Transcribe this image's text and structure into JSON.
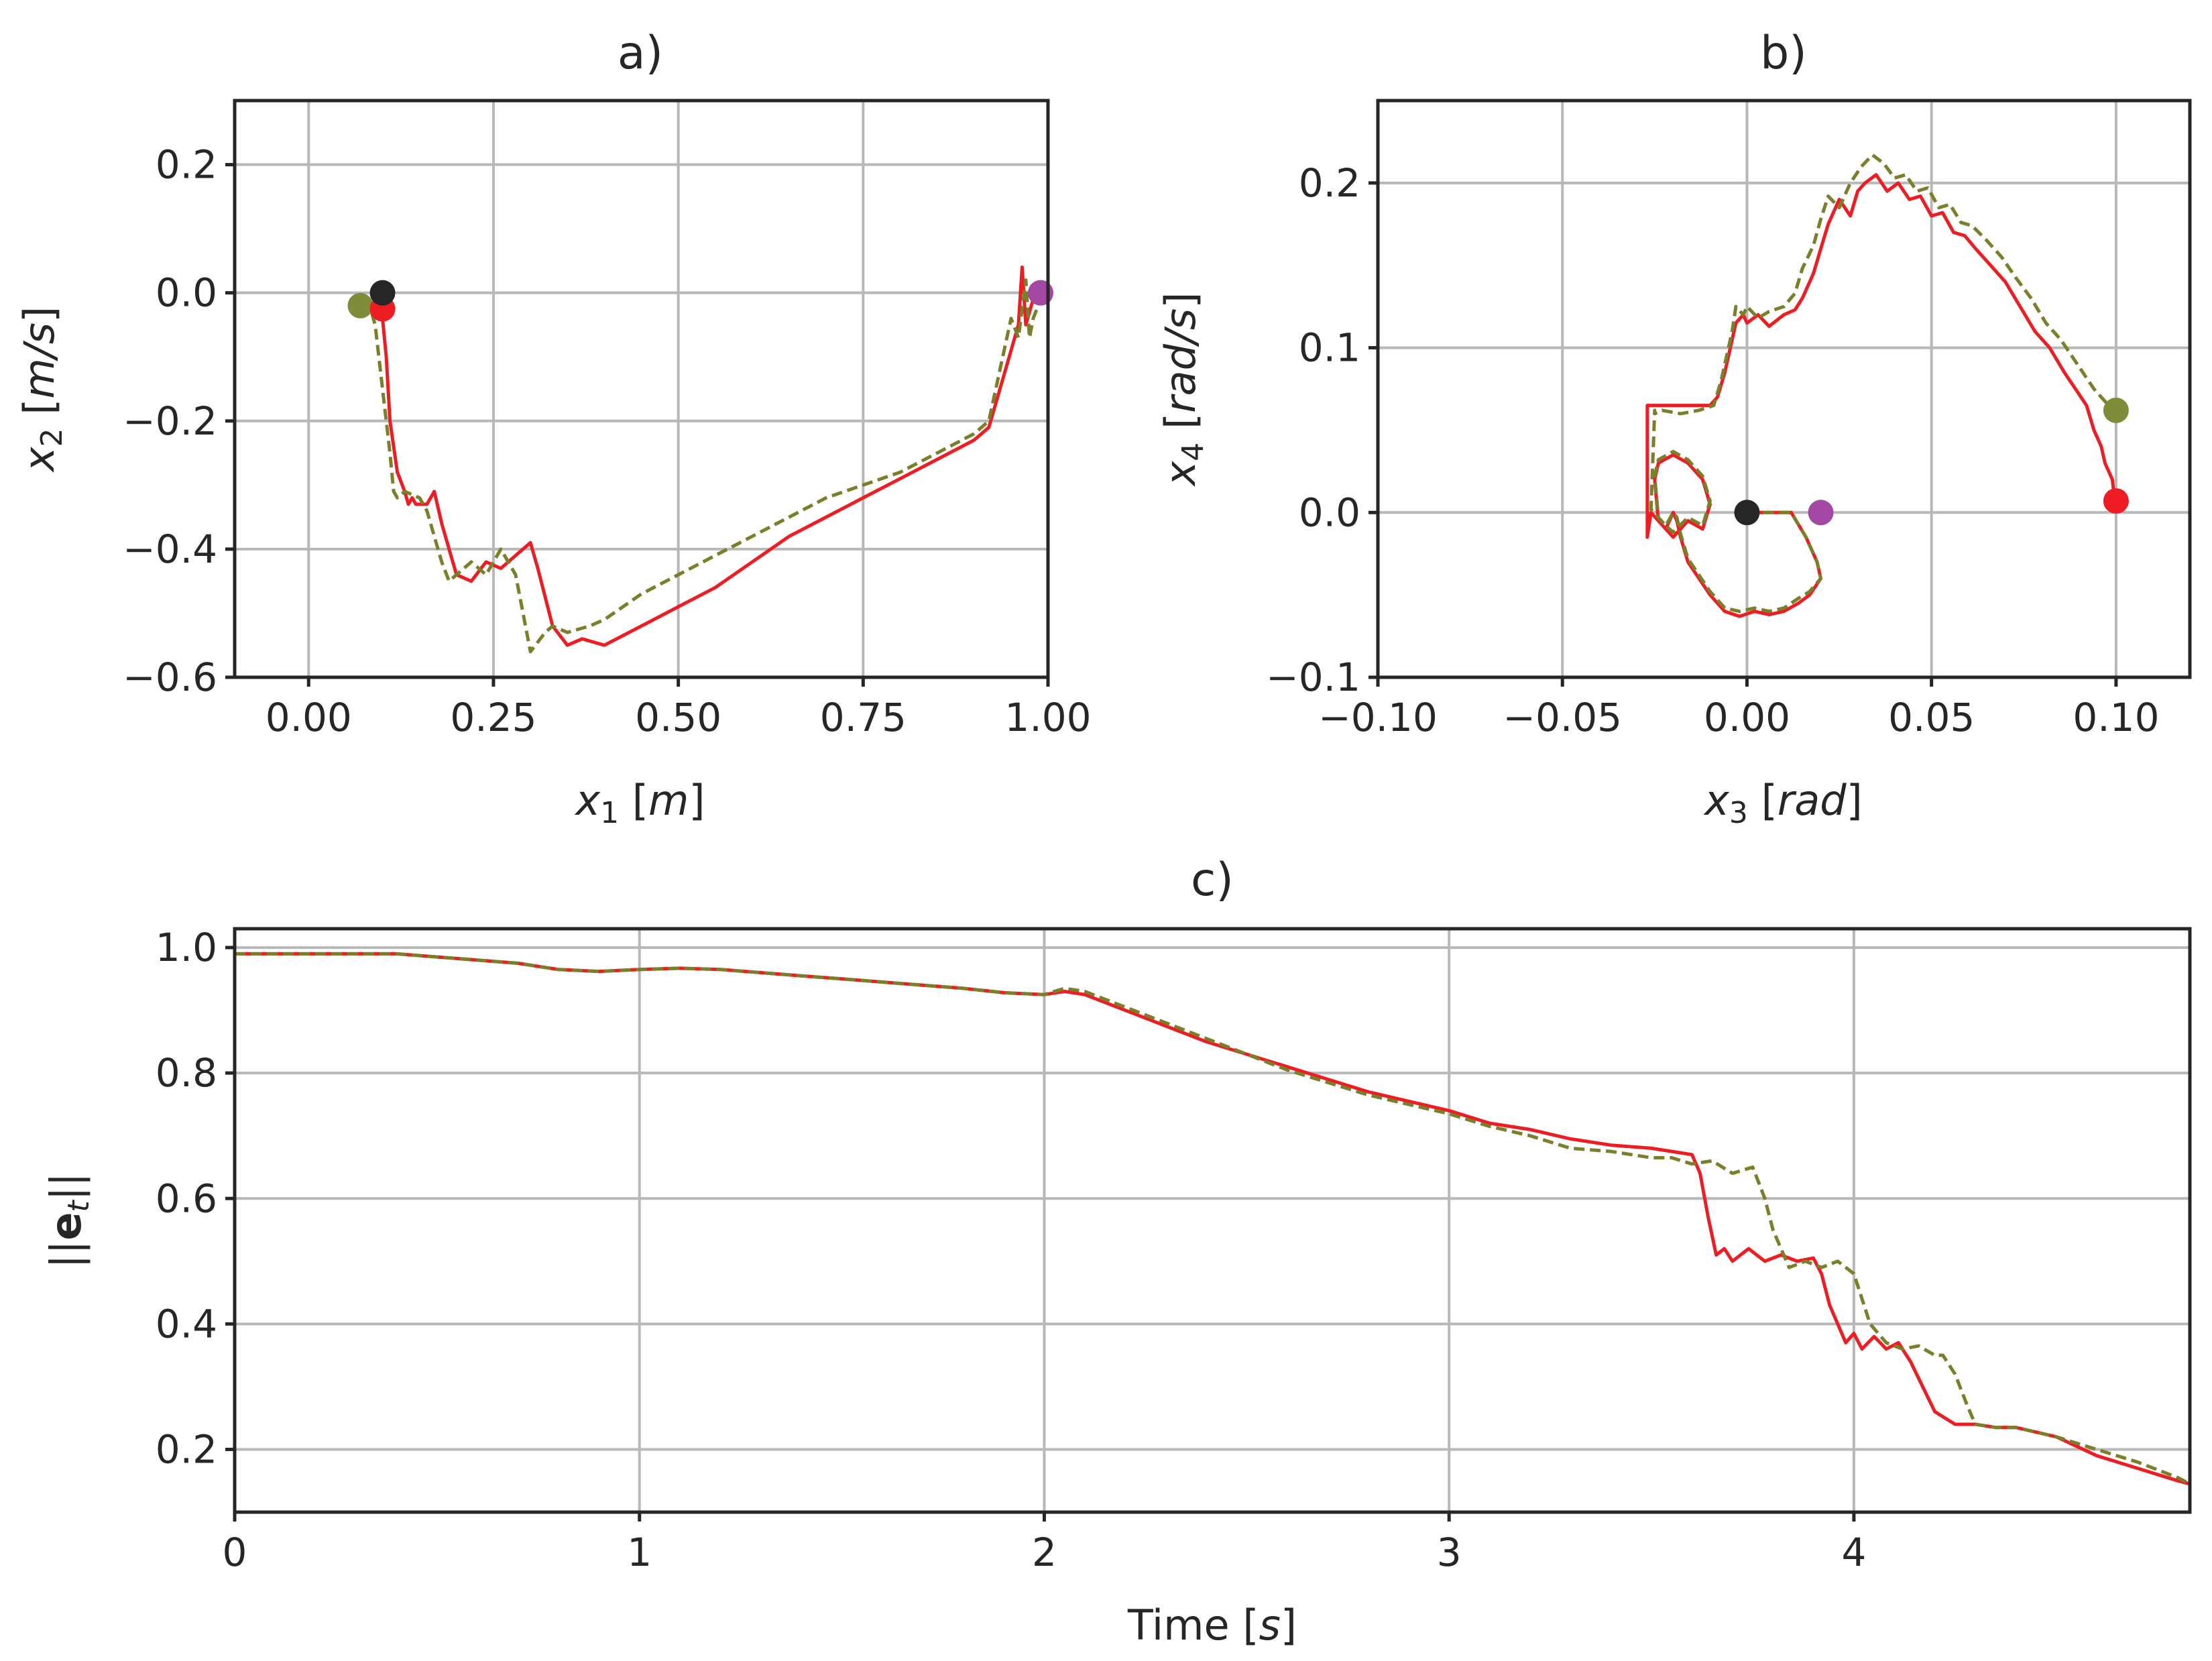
{
  "colors": {
    "red": "#ee1c23",
    "olive": "#7b7f2a",
    "olive_marker": "#7f8c3a",
    "black_marker": "#262626",
    "purple_marker": "#a349a4",
    "red_marker": "#ee1c23"
  },
  "chart_data": [
    {
      "id": "a",
      "type": "line",
      "title": "a)",
      "xlabel": {
        "var": "x",
        "sub": "1",
        "unit": "m"
      },
      "ylabel": {
        "var": "x",
        "sub": "2",
        "unit": "m/s"
      },
      "xlim": [
        -0.1,
        1.0
      ],
      "ylim": [
        -0.6,
        0.3
      ],
      "grid": true,
      "xticks": [
        0.0,
        0.25,
        0.5,
        0.75,
        1.0
      ],
      "xtick_labels": [
        "0.00",
        "0.25",
        "0.50",
        "0.75",
        "1.00"
      ],
      "yticks": [
        -0.6,
        -0.4,
        -0.2,
        0.0,
        0.2
      ],
      "ytick_labels": [
        "−0.6",
        "−0.4",
        "−0.2",
        "0.0",
        "0.2"
      ],
      "series": [
        {
          "name": "red",
          "style": "solid",
          "color": "red",
          "x": [
            0.1,
            0.1,
            0.105,
            0.11,
            0.12,
            0.13,
            0.135,
            0.14,
            0.145,
            0.16,
            0.17,
            0.18,
            0.19,
            0.2,
            0.22,
            0.24,
            0.26,
            0.28,
            0.3,
            0.31,
            0.33,
            0.35,
            0.37,
            0.4,
            0.45,
            0.5,
            0.55,
            0.6,
            0.65,
            0.7,
            0.75,
            0.8,
            0.85,
            0.9,
            0.92,
            0.95,
            0.96,
            0.965,
            0.97,
            0.975,
            0.98
          ],
          "y": [
            0.0,
            -0.04,
            -0.1,
            -0.2,
            -0.28,
            -0.31,
            -0.33,
            -0.32,
            -0.33,
            -0.33,
            -0.31,
            -0.36,
            -0.4,
            -0.44,
            -0.45,
            -0.42,
            -0.43,
            -0.41,
            -0.39,
            -0.43,
            -0.52,
            -0.55,
            -0.54,
            -0.55,
            -0.52,
            -0.49,
            -0.46,
            -0.42,
            -0.38,
            -0.35,
            -0.32,
            -0.29,
            -0.26,
            -0.23,
            -0.21,
            -0.09,
            -0.05,
            0.04,
            -0.05,
            -0.03,
            -0.01
          ]
        },
        {
          "name": "olive",
          "style": "dashed",
          "color": "olive",
          "x": [
            0.07,
            0.08,
            0.085,
            0.09,
            0.095,
            0.1,
            0.11,
            0.115,
            0.12,
            0.13,
            0.15,
            0.16,
            0.17,
            0.18,
            0.19,
            0.2,
            0.22,
            0.24,
            0.26,
            0.28,
            0.3,
            0.32,
            0.33,
            0.35,
            0.38,
            0.4,
            0.45,
            0.5,
            0.55,
            0.6,
            0.65,
            0.7,
            0.75,
            0.8,
            0.85,
            0.9,
            0.92,
            0.95,
            0.96,
            0.97,
            0.975,
            0.98,
            0.99
          ],
          "y": [
            -0.02,
            -0.02,
            -0.03,
            -0.05,
            -0.1,
            -0.15,
            -0.25,
            -0.31,
            -0.32,
            -0.31,
            -0.32,
            -0.34,
            -0.38,
            -0.42,
            -0.45,
            -0.44,
            -0.42,
            -0.44,
            -0.4,
            -0.44,
            -0.56,
            -0.53,
            -0.52,
            -0.53,
            -0.52,
            -0.51,
            -0.47,
            -0.44,
            -0.41,
            -0.38,
            -0.35,
            -0.32,
            -0.3,
            -0.28,
            -0.25,
            -0.22,
            -0.2,
            -0.04,
            -0.07,
            0.02,
            -0.07,
            -0.04,
            -0.01
          ]
        }
      ],
      "markers": [
        {
          "name": "olive-start",
          "x": 0.07,
          "y": -0.02,
          "color": "olive_marker"
        },
        {
          "name": "red-start",
          "x": 0.1,
          "y": -0.025,
          "color": "red_marker"
        },
        {
          "name": "black-origin",
          "x": 0.1,
          "y": 0.0,
          "color": "black_marker"
        },
        {
          "name": "purple-target",
          "x": 0.99,
          "y": 0.0,
          "color": "purple_marker"
        }
      ]
    },
    {
      "id": "b",
      "type": "line",
      "title": "b)",
      "xlabel": {
        "var": "x",
        "sub": "3",
        "unit": "rad"
      },
      "ylabel": {
        "var": "x",
        "sub": "4",
        "unit": "rad/s"
      },
      "xlim": [
        -0.1,
        0.12
      ],
      "ylim": [
        -0.1,
        0.25
      ],
      "grid": true,
      "xticks": [
        -0.1,
        -0.05,
        0.0,
        0.05,
        0.1
      ],
      "xtick_labels": [
        "−0.10",
        "−0.05",
        "0.00",
        "0.05",
        "0.10"
      ],
      "yticks": [
        -0.1,
        0.0,
        0.1,
        0.2
      ],
      "ytick_labels": [
        "−0.1",
        "0.0",
        "0.1",
        "0.2"
      ],
      "series": [
        {
          "name": "red",
          "style": "solid",
          "color": "red",
          "x": [
            0.0,
            0.006,
            0.012,
            0.016,
            0.019,
            0.02,
            0.017,
            0.014,
            0.01,
            0.006,
            0.002,
            -0.002,
            -0.006,
            -0.01,
            -0.013,
            -0.016,
            -0.018,
            -0.019,
            -0.02,
            -0.022,
            -0.024,
            -0.025,
            -0.024,
            -0.02,
            -0.016,
            -0.012,
            -0.01,
            -0.012,
            -0.016,
            -0.02,
            -0.022,
            -0.024,
            -0.026,
            -0.027,
            -0.027,
            -0.025,
            -0.02,
            -0.014,
            -0.01,
            -0.008,
            -0.006,
            -0.004,
            -0.003,
            -0.001,
            0.0,
            0.003,
            0.006,
            0.01,
            0.013,
            0.015,
            0.018,
            0.02,
            0.022,
            0.025,
            0.028,
            0.03,
            0.032,
            0.035,
            0.038,
            0.041,
            0.044,
            0.047,
            0.05,
            0.053,
            0.056,
            0.059,
            0.062,
            0.066,
            0.07,
            0.074,
            0.078,
            0.082,
            0.086,
            0.089,
            0.092,
            0.094,
            0.096,
            0.097,
            0.098,
            0.099,
            0.0995,
            0.1
          ],
          "y": [
            0.0,
            0.0,
            0.0,
            -0.015,
            -0.03,
            -0.04,
            -0.05,
            -0.055,
            -0.06,
            -0.062,
            -0.06,
            -0.063,
            -0.06,
            -0.05,
            -0.04,
            -0.03,
            -0.015,
            -0.005,
            0.0,
            -0.01,
            -0.005,
            0.02,
            0.03,
            0.035,
            0.03,
            0.02,
            0.005,
            -0.01,
            -0.005,
            -0.015,
            -0.01,
            -0.005,
            0.0,
            -0.015,
            0.065,
            0.065,
            0.065,
            0.065,
            0.065,
            0.07,
            0.085,
            0.105,
            0.115,
            0.12,
            0.115,
            0.12,
            0.113,
            0.12,
            0.123,
            0.13,
            0.145,
            0.16,
            0.175,
            0.19,
            0.18,
            0.195,
            0.2,
            0.205,
            0.195,
            0.2,
            0.19,
            0.192,
            0.18,
            0.182,
            0.17,
            0.168,
            0.16,
            0.15,
            0.14,
            0.125,
            0.11,
            0.1,
            0.085,
            0.075,
            0.065,
            0.05,
            0.04,
            0.03,
            0.025,
            0.02,
            0.01,
            0.007
          ]
        },
        {
          "name": "olive",
          "style": "dashed",
          "color": "olive",
          "x": [
            0.0,
            0.006,
            0.012,
            0.016,
            0.019,
            0.02,
            0.017,
            0.014,
            0.01,
            0.006,
            0.002,
            -0.002,
            -0.006,
            -0.01,
            -0.013,
            -0.016,
            -0.018,
            -0.019,
            -0.02,
            -0.022,
            -0.024,
            -0.025,
            -0.024,
            -0.02,
            -0.016,
            -0.012,
            -0.01,
            -0.012,
            -0.016,
            -0.02,
            -0.022,
            -0.024,
            -0.026,
            -0.025,
            -0.025,
            -0.023,
            -0.018,
            -0.013,
            -0.009,
            -0.007,
            -0.005,
            -0.004,
            -0.003,
            -0.001,
            0.0,
            0.003,
            0.006,
            0.01,
            0.013,
            0.015,
            0.018,
            0.02,
            0.022,
            0.025,
            0.028,
            0.031,
            0.034,
            0.037,
            0.04,
            0.043,
            0.046,
            0.049,
            0.052,
            0.055,
            0.058,
            0.061,
            0.065,
            0.069,
            0.073,
            0.077,
            0.081,
            0.085,
            0.088,
            0.091,
            0.094,
            0.096,
            0.098,
            0.099,
            0.1
          ],
          "y": [
            0.0,
            0.0,
            0.0,
            -0.015,
            -0.03,
            -0.04,
            -0.048,
            -0.052,
            -0.058,
            -0.06,
            -0.058,
            -0.06,
            -0.058,
            -0.048,
            -0.038,
            -0.028,
            -0.013,
            -0.003,
            0.0,
            -0.008,
            -0.003,
            0.022,
            0.032,
            0.037,
            0.032,
            0.022,
            0.007,
            -0.008,
            -0.003,
            -0.012,
            -0.008,
            -0.003,
            0.002,
            0.062,
            0.06,
            0.062,
            0.06,
            0.062,
            0.065,
            0.08,
            0.1,
            0.11,
            0.125,
            0.12,
            0.125,
            0.118,
            0.122,
            0.125,
            0.133,
            0.148,
            0.162,
            0.178,
            0.192,
            0.185,
            0.2,
            0.21,
            0.217,
            0.212,
            0.203,
            0.205,
            0.195,
            0.197,
            0.185,
            0.187,
            0.176,
            0.174,
            0.165,
            0.155,
            0.142,
            0.13,
            0.115,
            0.105,
            0.095,
            0.085,
            0.075,
            0.07,
            0.065,
            0.063,
            0.062
          ]
        }
      ],
      "markers": [
        {
          "name": "black-origin",
          "x": 0.0,
          "y": 0.0,
          "color": "black_marker"
        },
        {
          "name": "purple-start",
          "x": 0.02,
          "y": 0.0,
          "color": "purple_marker"
        },
        {
          "name": "olive-end",
          "x": 0.1,
          "y": 0.062,
          "color": "olive_marker"
        },
        {
          "name": "red-end",
          "x": 0.1,
          "y": 0.007,
          "color": "red_marker"
        }
      ]
    },
    {
      "id": "c",
      "type": "line",
      "title": "c)",
      "xlabel": {
        "text": "Time",
        "unit": "s"
      },
      "ylabel": {
        "text": "||e_t||"
      },
      "xlim": [
        0.0,
        4.83
      ],
      "ylim": [
        0.1,
        1.03
      ],
      "grid": true,
      "xticks": [
        0,
        1,
        2,
        3,
        4
      ],
      "xtick_labels": [
        "0",
        "1",
        "2",
        "3",
        "4"
      ],
      "yticks": [
        0.2,
        0.4,
        0.6,
        0.8,
        1.0
      ],
      "ytick_labels": [
        "0.2",
        "0.4",
        "0.6",
        "0.8",
        "1.0"
      ],
      "series": [
        {
          "name": "red",
          "style": "solid",
          "color": "red",
          "x": [
            0.0,
            0.2,
            0.4,
            0.5,
            0.6,
            0.7,
            0.8,
            0.9,
            1.0,
            1.1,
            1.2,
            1.3,
            1.4,
            1.5,
            1.6,
            1.7,
            1.8,
            1.9,
            2.0,
            2.05,
            2.1,
            2.2,
            2.3,
            2.4,
            2.5,
            2.6,
            2.7,
            2.8,
            2.9,
            3.0,
            3.1,
            3.2,
            3.3,
            3.4,
            3.5,
            3.55,
            3.6,
            3.62,
            3.64,
            3.66,
            3.68,
            3.7,
            3.74,
            3.78,
            3.82,
            3.86,
            3.9,
            3.92,
            3.94,
            3.96,
            3.98,
            4.0,
            4.02,
            4.05,
            4.08,
            4.11,
            4.14,
            4.17,
            4.2,
            4.25,
            4.3,
            4.35,
            4.4,
            4.5,
            4.6,
            4.7,
            4.8,
            4.83
          ],
          "y": [
            0.99,
            0.99,
            0.99,
            0.985,
            0.98,
            0.975,
            0.965,
            0.962,
            0.965,
            0.967,
            0.965,
            0.96,
            0.955,
            0.95,
            0.945,
            0.94,
            0.935,
            0.928,
            0.925,
            0.93,
            0.925,
            0.9,
            0.875,
            0.85,
            0.83,
            0.81,
            0.79,
            0.77,
            0.755,
            0.74,
            0.72,
            0.71,
            0.695,
            0.685,
            0.68,
            0.675,
            0.67,
            0.64,
            0.57,
            0.51,
            0.52,
            0.5,
            0.52,
            0.5,
            0.51,
            0.5,
            0.505,
            0.48,
            0.43,
            0.4,
            0.37,
            0.385,
            0.36,
            0.38,
            0.36,
            0.37,
            0.34,
            0.3,
            0.26,
            0.24,
            0.24,
            0.235,
            0.235,
            0.22,
            0.19,
            0.17,
            0.15,
            0.145
          ]
        },
        {
          "name": "olive",
          "style": "dashed",
          "color": "olive",
          "x": [
            0.0,
            0.2,
            0.4,
            0.5,
            0.6,
            0.7,
            0.8,
            0.9,
            1.0,
            1.1,
            1.2,
            1.3,
            1.4,
            1.5,
            1.6,
            1.7,
            1.8,
            1.9,
            2.0,
            2.05,
            2.1,
            2.2,
            2.3,
            2.4,
            2.5,
            2.6,
            2.7,
            2.8,
            2.9,
            3.0,
            3.1,
            3.2,
            3.3,
            3.4,
            3.5,
            3.55,
            3.6,
            3.65,
            3.7,
            3.75,
            3.78,
            3.8,
            3.84,
            3.88,
            3.92,
            3.96,
            4.0,
            4.04,
            4.08,
            4.12,
            4.16,
            4.2,
            4.22,
            4.25,
            4.28,
            4.3,
            4.35,
            4.4,
            4.5,
            4.6,
            4.7,
            4.8,
            4.83
          ],
          "y": [
            0.99,
            0.99,
            0.99,
            0.985,
            0.98,
            0.975,
            0.965,
            0.962,
            0.965,
            0.967,
            0.965,
            0.96,
            0.955,
            0.95,
            0.945,
            0.94,
            0.935,
            0.928,
            0.925,
            0.935,
            0.93,
            0.905,
            0.88,
            0.855,
            0.83,
            0.805,
            0.785,
            0.765,
            0.75,
            0.735,
            0.715,
            0.7,
            0.68,
            0.675,
            0.665,
            0.665,
            0.655,
            0.66,
            0.64,
            0.65,
            0.6,
            0.55,
            0.49,
            0.5,
            0.49,
            0.5,
            0.48,
            0.4,
            0.37,
            0.36,
            0.365,
            0.35,
            0.35,
            0.32,
            0.27,
            0.24,
            0.235,
            0.235,
            0.22,
            0.2,
            0.18,
            0.155,
            0.145
          ]
        }
      ],
      "markers": []
    }
  ]
}
